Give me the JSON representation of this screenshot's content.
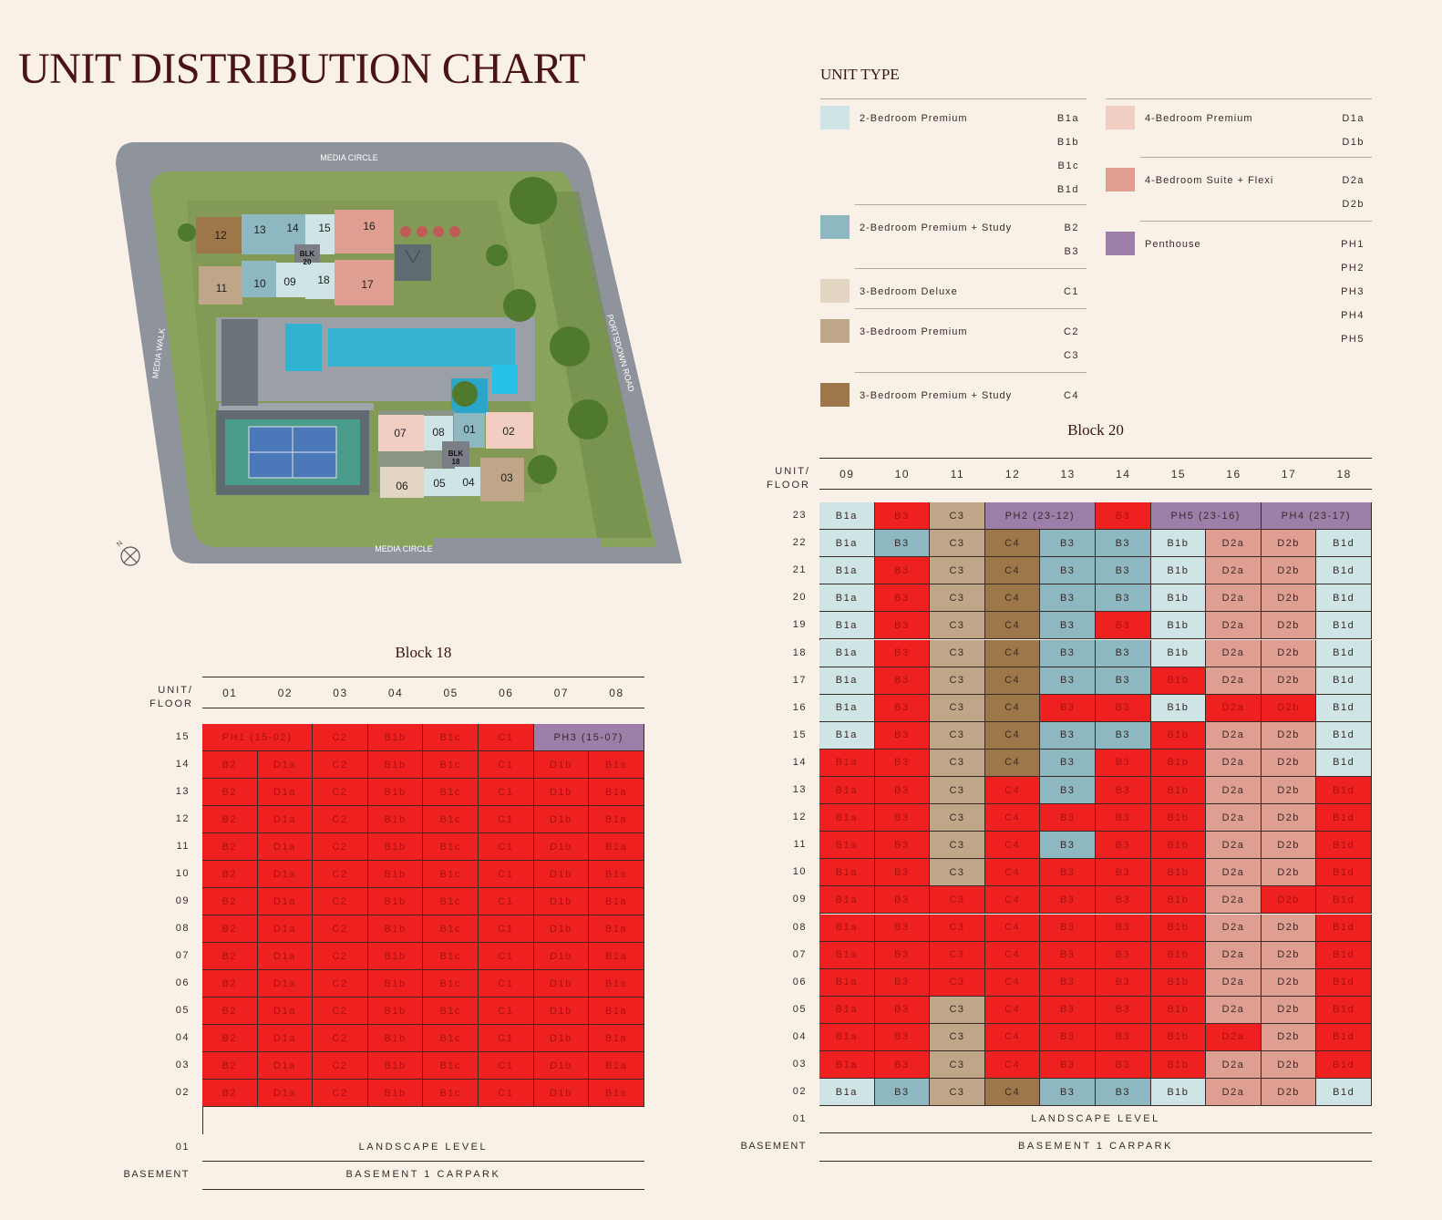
{
  "title": "UNIT DISTRIBUTION CHART",
  "unit_type_heading": "UNIT TYPE",
  "colors": {
    "B1": "#cfe4e5",
    "B2": "#8eb8c1",
    "C1": "#e2d6c2",
    "C2": "#c0a688",
    "C4": "#9d7649",
    "D1": "#f1cec1",
    "D2": "#de9f92",
    "PH": "#9c7ea8",
    "SOLD": "#ef2020"
  },
  "legend": {
    "left": [
      {
        "name": "2-Bedroom Premium",
        "color": "B1",
        "codes": [
          "B1a",
          "B1b",
          "B1c",
          "B1d"
        ]
      },
      {
        "name": "2-Bedroom Premium + Study",
        "color": "B2",
        "codes": [
          "B2",
          "B3"
        ]
      },
      {
        "name": "3-Bedroom Deluxe",
        "color": "C1",
        "codes": [
          "C1"
        ]
      },
      {
        "name": "3-Bedroom Premium",
        "color": "C2",
        "codes": [
          "C2",
          "C3"
        ]
      },
      {
        "name": "3-Bedroom Premium + Study",
        "color": "C4",
        "codes": [
          "C4"
        ]
      }
    ],
    "right": [
      {
        "name": "4-Bedroom Premium",
        "color": "D1",
        "codes": [
          "D1a",
          "D1b"
        ]
      },
      {
        "name": "4-Bedroom Suite + Flexi",
        "color": "D2",
        "codes": [
          "D2a",
          "D2b"
        ]
      },
      {
        "name": "Penthouse",
        "color": "PH",
        "codes": [
          "PH1",
          "PH2",
          "PH3",
          "PH4",
          "PH5"
        ]
      }
    ]
  },
  "site_plan": {
    "roads": [
      "MEDIA CIRCLE",
      "MEDIA WALK",
      "PORTSDOWN ROAD",
      "MEDIA CIRCLE"
    ],
    "units": [
      "12",
      "13",
      "14",
      "15",
      "16",
      "11",
      "10",
      "09",
      "18",
      "17",
      "07",
      "08",
      "01",
      "02",
      "06",
      "05",
      "04",
      "03"
    ],
    "blocks": [
      [
        "BLK",
        "20"
      ],
      [
        "BLK",
        "18"
      ]
    ],
    "compass": "N"
  },
  "unit_floor_label": [
    "UNIT/",
    "FLOOR"
  ],
  "block18": {
    "title": "Block 18",
    "columns": [
      "01",
      "02",
      "03",
      "04",
      "05",
      "06",
      "07",
      "08"
    ],
    "floors": [
      "15",
      "14",
      "13",
      "12",
      "11",
      "10",
      "09",
      "08",
      "07",
      "06",
      "05",
      "04",
      "03",
      "02"
    ],
    "top_row": [
      {
        "text": "PH1 (15-02)",
        "span": 2,
        "type": "PH",
        "sold": true
      },
      {
        "text": "C2",
        "span": 1,
        "type": "C2",
        "sold": true
      },
      {
        "text": "B1b",
        "span": 1,
        "type": "B1",
        "sold": true
      },
      {
        "text": "B1c",
        "span": 1,
        "type": "B1",
        "sold": true
      },
      {
        "text": "C1",
        "span": 1,
        "type": "C1",
        "sold": true
      },
      {
        "text": "PH3 (15-07)",
        "span": 2,
        "type": "PH",
        "sold": false
      }
    ],
    "column_types": [
      "B2",
      "D1a",
      "C2",
      "B1b",
      "B1c",
      "C1",
      "D1b",
      "B1a"
    ],
    "all_sold_below_top": true,
    "landscape_floor": "01",
    "landscape": "LANDSCAPE LEVEL",
    "basement_label": "BASEMENT",
    "basement": "BASEMENT 1 CARPARK"
  },
  "block20": {
    "title": "Block 20",
    "columns": [
      "09",
      "10",
      "11",
      "12",
      "13",
      "14",
      "15",
      "16",
      "17",
      "18"
    ],
    "floors": [
      "22",
      "21",
      "20",
      "19",
      "18",
      "17",
      "16",
      "15",
      "14",
      "13",
      "12",
      "11",
      "10",
      "09",
      "08",
      "07",
      "06",
      "05",
      "04",
      "03",
      "02"
    ],
    "top_floor": "23",
    "top_row": [
      {
        "text": "B1a",
        "span": 1,
        "type": "B1",
        "sold": false
      },
      {
        "text": "B3",
        "span": 1,
        "type": "B2",
        "sold": true
      },
      {
        "text": "C3",
        "span": 1,
        "type": "C2",
        "sold": false
      },
      {
        "text": "PH2 (23-12)",
        "span": 2,
        "type": "PH",
        "sold": false
      },
      {
        "text": "B3",
        "span": 1,
        "type": "B2",
        "sold": true
      },
      {
        "text": "PH5 (23-16)",
        "span": 2,
        "type": "PH",
        "sold": false
      },
      {
        "text": "PH4 (23-17)",
        "span": 2,
        "type": "PH",
        "sold": false
      }
    ],
    "column_types": [
      "B1a",
      "B3",
      "C3",
      "C4",
      "B3",
      "B3",
      "B1b",
      "D2a",
      "D2b",
      "B1d"
    ],
    "sold_matrix": [
      "0101010000",
      "0000000000",
      "0100000000",
      "0100000000",
      "0100010000",
      "0100000000",
      "0100001000",
      "0100110110",
      "0100001000",
      "1100011000",
      "1101011001",
      "1101111001",
      "1101011001",
      "1101111001",
      "1111111011",
      "1111111001",
      "1111111001",
      "1111111001",
      "1101111001",
      "1101111101",
      "1101111001"
    ],
    "landscape_floor": "01",
    "landscape": "LANDSCAPE LEVEL",
    "basement_label": "BASEMENT",
    "basement": "BASEMENT 1 CARPARK"
  }
}
